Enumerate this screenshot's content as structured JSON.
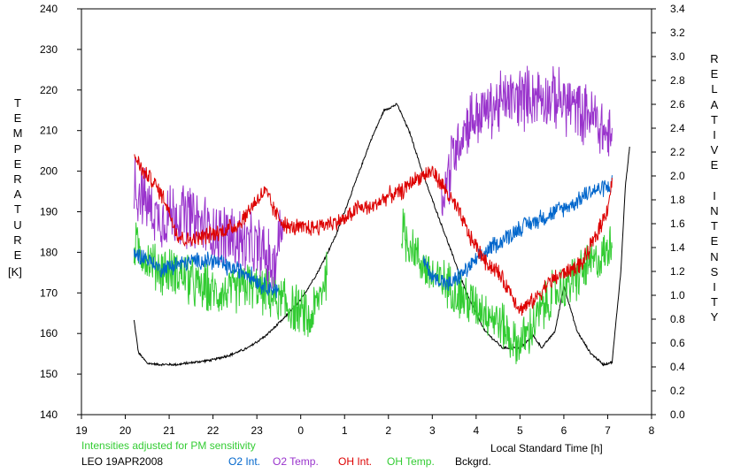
{
  "chart_data": {
    "type": "line",
    "left_axis_label": "TEMPERATURE",
    "left_axis_unit": "[K]",
    "right_axis_label": "RELATIVE INTENSITY",
    "xlabel": "Local Standard Time [h]",
    "note": "Intensities adjusted for PM sensitivity",
    "station_date": "LEO 19APR2008",
    "x_ticks": [
      "19",
      "20",
      "21",
      "22",
      "23",
      "0",
      "1",
      "2",
      "3",
      "4",
      "5",
      "6",
      "7",
      "8"
    ],
    "y_left_ticks": [
      "140",
      "150",
      "160",
      "170",
      "180",
      "190",
      "200",
      "210",
      "220",
      "230",
      "240"
    ],
    "y_right_ticks": [
      "0.0",
      "0.2",
      "0.4",
      "0.6",
      "0.8",
      "1.0",
      "1.2",
      "1.4",
      "1.6",
      "1.8",
      "2.0",
      "2.2",
      "2.4",
      "2.6",
      "2.8",
      "3.0",
      "3.2",
      "3.4"
    ],
    "xlim": [
      19,
      32
    ],
    "ylim_left": [
      140,
      240
    ],
    "ylim_right": [
      0,
      3.4
    ],
    "series": [
      {
        "name": "O2 Int.",
        "color": "#0066cc",
        "axis": "left",
        "points": [
          [
            20.2,
            180
          ],
          [
            20.4,
            179
          ],
          [
            20.8,
            176
          ],
          [
            21.2,
            177
          ],
          [
            21.6,
            178
          ],
          [
            22.0,
            178
          ],
          [
            22.4,
            176
          ],
          [
            22.8,
            175
          ],
          [
            23.1,
            172
          ],
          [
            23.4,
            171
          ],
          [
            23.5,
            170
          ],
          [
            26.8,
            178
          ],
          [
            27.0,
            174
          ],
          [
            27.4,
            172
          ],
          [
            27.8,
            176
          ],
          [
            28.2,
            180
          ],
          [
            28.6,
            183
          ],
          [
            29.0,
            186
          ],
          [
            29.4,
            188
          ],
          [
            29.8,
            190
          ],
          [
            30.2,
            192
          ],
          [
            30.6,
            195
          ],
          [
            31.0,
            196
          ],
          [
            31.1,
            197
          ]
        ],
        "noise": 2.5
      },
      {
        "name": "O2 Temp.",
        "color": "#9933cc",
        "axis": "left",
        "points": [
          [
            20.2,
            196
          ],
          [
            20.5,
            192
          ],
          [
            20.8,
            188
          ],
          [
            21.2,
            190
          ],
          [
            21.6,
            188
          ],
          [
            22.0,
            185
          ],
          [
            22.4,
            184
          ],
          [
            22.8,
            182
          ],
          [
            23.1,
            180
          ],
          [
            23.4,
            176
          ],
          [
            23.6,
            190
          ],
          [
            27.2,
            192
          ],
          [
            27.5,
            205
          ],
          [
            27.8,
            212
          ],
          [
            28.2,
            215
          ],
          [
            28.6,
            217
          ],
          [
            29.0,
            218
          ],
          [
            29.4,
            219
          ],
          [
            29.8,
            218
          ],
          [
            30.2,
            216
          ],
          [
            30.6,
            214
          ],
          [
            30.9,
            210
          ],
          [
            31.1,
            207
          ]
        ],
        "noise": 9
      },
      {
        "name": "OH Int.",
        "color": "#dd0000",
        "axis": "left",
        "points": [
          [
            20.2,
            204
          ],
          [
            20.4,
            200
          ],
          [
            20.6,
            198
          ],
          [
            20.9,
            193
          ],
          [
            21.2,
            184
          ],
          [
            21.4,
            183
          ],
          [
            21.8,
            184
          ],
          [
            22.2,
            185
          ],
          [
            22.6,
            187
          ],
          [
            23.0,
            193
          ],
          [
            23.2,
            195
          ],
          [
            23.4,
            190
          ],
          [
            23.7,
            186
          ],
          [
            24.2,
            186
          ],
          [
            24.6,
            187
          ],
          [
            25.0,
            188
          ],
          [
            25.3,
            191
          ],
          [
            25.6,
            191
          ],
          [
            26.0,
            194
          ],
          [
            26.3,
            195
          ],
          [
            26.6,
            198
          ],
          [
            27.0,
            200
          ],
          [
            27.2,
            197
          ],
          [
            27.6,
            190
          ],
          [
            27.9,
            183
          ],
          [
            28.2,
            178
          ],
          [
            28.5,
            175
          ],
          [
            28.8,
            170
          ],
          [
            29.0,
            166
          ],
          [
            29.3,
            168
          ],
          [
            29.6,
            172
          ],
          [
            30.0,
            175
          ],
          [
            30.4,
            177
          ],
          [
            30.7,
            183
          ],
          [
            31.0,
            191
          ],
          [
            31.1,
            198
          ]
        ],
        "noise": 2.5
      },
      {
        "name": "OH Temp.",
        "color": "#33cc33",
        "axis": "left",
        "points": [
          [
            20.2,
            182
          ],
          [
            20.5,
            178
          ],
          [
            20.8,
            176
          ],
          [
            21.2,
            175
          ],
          [
            21.6,
            172
          ],
          [
            22.0,
            170
          ],
          [
            22.4,
            170
          ],
          [
            22.8,
            172
          ],
          [
            23.2,
            170
          ],
          [
            23.5,
            168
          ],
          [
            23.8,
            166
          ],
          [
            24.0,
            165
          ],
          [
            24.2,
            163
          ],
          [
            24.4,
            168
          ],
          [
            24.6,
            175
          ],
          [
            26.3,
            185
          ],
          [
            26.6,
            180
          ],
          [
            27.0,
            174
          ],
          [
            27.4,
            172
          ],
          [
            27.8,
            168
          ],
          [
            28.2,
            166
          ],
          [
            28.6,
            162
          ],
          [
            28.9,
            157
          ],
          [
            29.2,
            160
          ],
          [
            29.5,
            166
          ],
          [
            29.8,
            170
          ],
          [
            30.2,
            173
          ],
          [
            30.6,
            177
          ],
          [
            31.0,
            180
          ],
          [
            31.1,
            185
          ]
        ],
        "noise": 7
      },
      {
        "name": "Bckgrd.",
        "color": "#000000",
        "axis": "right",
        "points": [
          [
            20.2,
            0.79
          ],
          [
            20.3,
            0.52
          ],
          [
            20.5,
            0.43
          ],
          [
            20.8,
            0.42
          ],
          [
            21.2,
            0.42
          ],
          [
            21.6,
            0.44
          ],
          [
            22.0,
            0.46
          ],
          [
            22.4,
            0.5
          ],
          [
            22.8,
            0.56
          ],
          [
            23.2,
            0.66
          ],
          [
            23.6,
            0.8
          ],
          [
            24.0,
            0.96
          ],
          [
            24.4,
            1.2
          ],
          [
            24.8,
            1.5
          ],
          [
            25.2,
            1.9
          ],
          [
            25.6,
            2.3
          ],
          [
            25.9,
            2.55
          ],
          [
            26.2,
            2.6
          ],
          [
            26.5,
            2.35
          ],
          [
            26.8,
            2.0
          ],
          [
            27.2,
            1.6
          ],
          [
            27.5,
            1.3
          ],
          [
            27.8,
            1.0
          ],
          [
            28.2,
            0.7
          ],
          [
            28.6,
            0.56
          ],
          [
            29.0,
            0.56
          ],
          [
            29.3,
            0.66
          ],
          [
            29.5,
            0.56
          ],
          [
            29.8,
            0.7
          ],
          [
            30.0,
            1.08
          ],
          [
            30.3,
            0.7
          ],
          [
            30.6,
            0.52
          ],
          [
            30.9,
            0.42
          ],
          [
            31.1,
            0.44
          ],
          [
            31.3,
            1.2
          ],
          [
            31.4,
            1.9
          ],
          [
            31.5,
            2.24
          ]
        ],
        "noise": 0.012
      }
    ]
  }
}
